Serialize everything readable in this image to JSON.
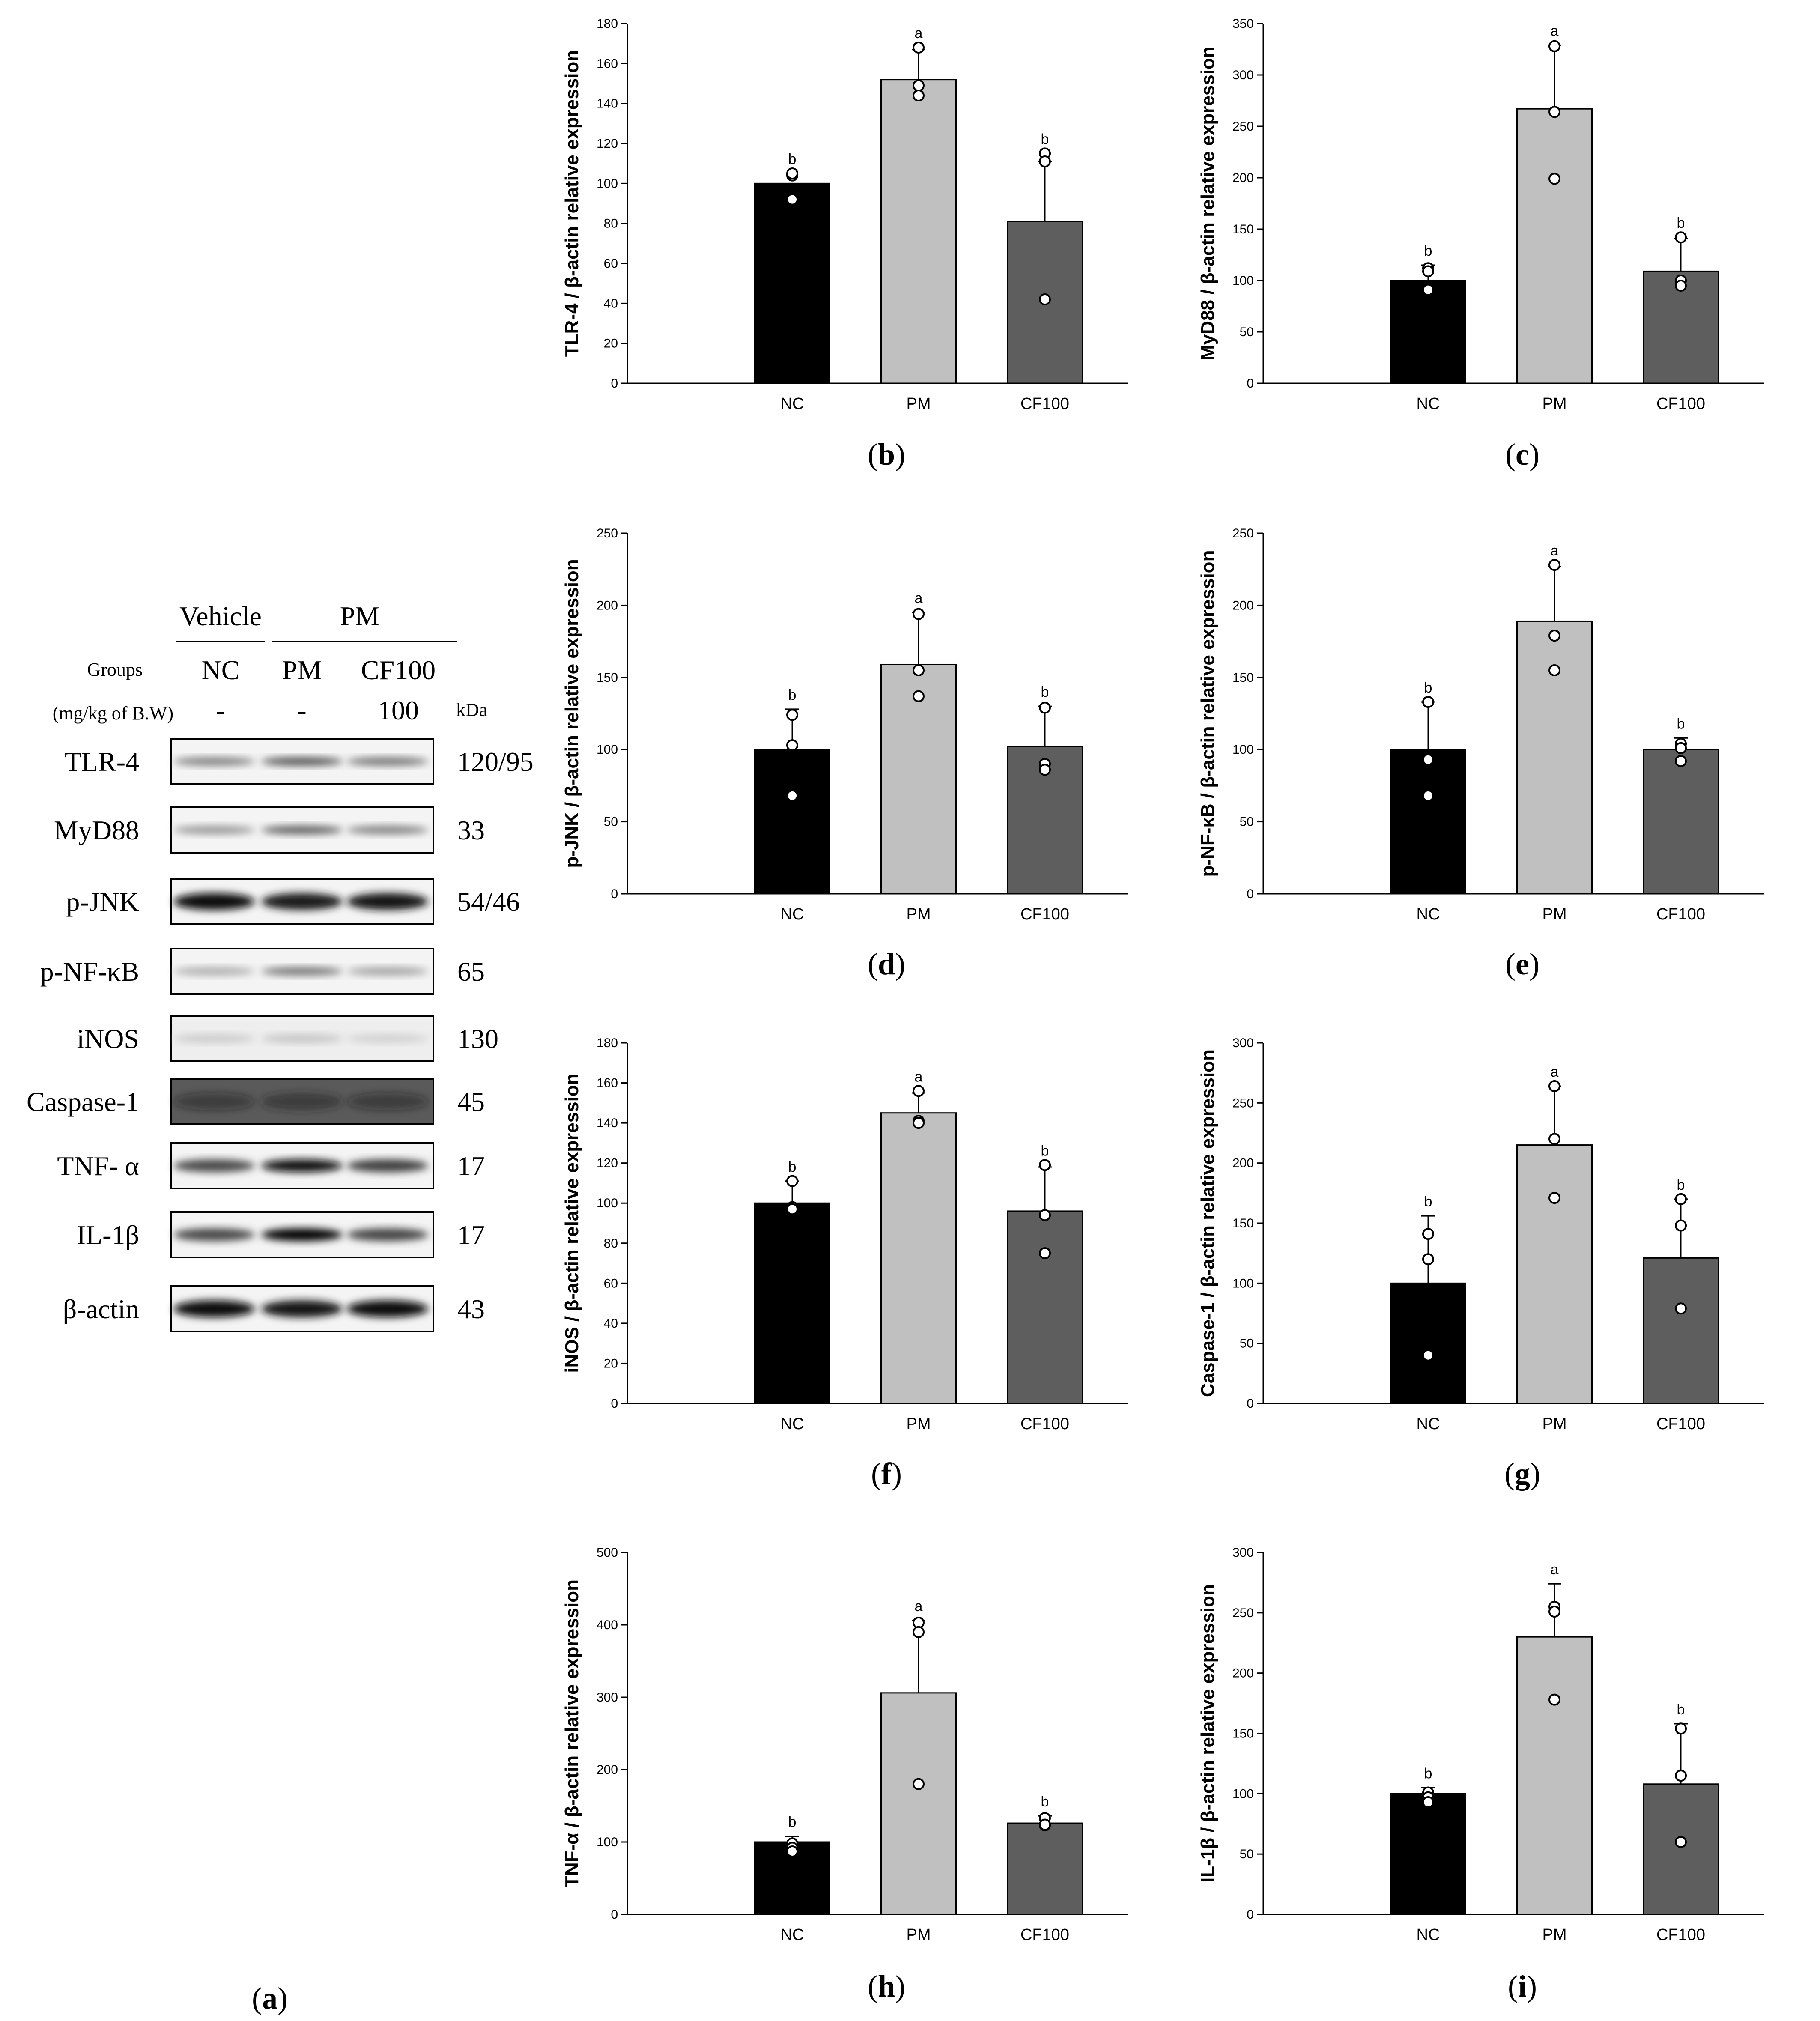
{
  "western_blot": {
    "panel_label": "a",
    "header_vehicle": "Vehicle",
    "header_pm": "PM",
    "groups_label": "Groups",
    "dose_label": "(mg/kg of B.W)",
    "lane_groups": [
      "NC",
      "PM",
      "CF100"
    ],
    "lane_doses": [
      "-",
      "-",
      "100"
    ],
    "kda_label": "kDa",
    "rows": [
      {
        "protein": "TLR-4",
        "kda": "120/95",
        "style": "faint",
        "intensity": [
          0.45,
          0.65,
          0.5
        ]
      },
      {
        "protein": "MyD88",
        "kda": "33",
        "style": "faint",
        "intensity": [
          0.35,
          0.6,
          0.45
        ]
      },
      {
        "protein": "p-JNK",
        "kda": "54/46",
        "style": "strong",
        "intensity": [
          0.95,
          0.9,
          0.92
        ]
      },
      {
        "protein": "p-NF-κB",
        "kda": "65",
        "style": "faint",
        "intensity": [
          0.25,
          0.5,
          0.3
        ]
      },
      {
        "protein": "iNOS",
        "kda": "130",
        "style": "very-faint",
        "intensity": [
          0.12,
          0.15,
          0.1
        ]
      },
      {
        "protein": "Caspase-1",
        "kda": "45",
        "style": "dark-bg",
        "intensity": [
          0.55,
          0.65,
          0.55
        ]
      },
      {
        "protein": "TNF- α",
        "kda": "17",
        "style": "medium",
        "intensity": [
          0.7,
          0.95,
          0.75
        ]
      },
      {
        "protein": "IL-1β",
        "kda": "17",
        "style": "medium",
        "intensity": [
          0.7,
          1.0,
          0.72
        ]
      },
      {
        "protein": "β-actin",
        "kda": "43",
        "style": "strong",
        "intensity": [
          0.95,
          0.92,
          0.95
        ]
      }
    ]
  },
  "colors": {
    "NC": "#000000",
    "PM": "#c0c0c0",
    "CF100": "#5e5e5e"
  },
  "chart_data": [
    {
      "type": "bar",
      "panel_label": "b",
      "ylabel": "TLR-4 / β-actin relative expression",
      "categories": [
        "NC",
        "PM",
        "CF100"
      ],
      "values": [
        100,
        152,
        81
      ],
      "errors": [
        0,
        15,
        30
      ],
      "letters": [
        "b",
        "a",
        "b"
      ],
      "ylim": [
        0,
        180
      ],
      "yticks": [
        0,
        20,
        40,
        60,
        80,
        100,
        120,
        140,
        160,
        180
      ],
      "points": [
        [
          104,
          105,
          92
        ],
        [
          168,
          149,
          144
        ],
        [
          115,
          111,
          42
        ]
      ]
    },
    {
      "type": "bar",
      "panel_label": "c",
      "ylabel": "MyD88 / β-actin relative expression",
      "categories": [
        "NC",
        "PM",
        "CF100"
      ],
      "values": [
        100,
        267,
        109
      ],
      "errors": [
        15,
        62,
        32
      ],
      "letters": [
        "b",
        "a",
        "b"
      ],
      "ylim": [
        0,
        350
      ],
      "yticks": [
        0,
        50,
        100,
        150,
        200,
        250,
        300,
        350
      ],
      "points": [
        [
          112,
          109,
          91
        ],
        [
          328,
          264,
          199
        ],
        [
          142,
          100,
          95
        ]
      ]
    },
    {
      "type": "bar",
      "panel_label": "d",
      "ylabel": "p-JNK / β-actin relative expression",
      "categories": [
        "NC",
        "PM",
        "CF100"
      ],
      "values": [
        100,
        159,
        102
      ],
      "errors": [
        28,
        36,
        28
      ],
      "letters": [
        "b",
        "a",
        "b"
      ],
      "ylim": [
        0,
        250
      ],
      "yticks": [
        0,
        50,
        100,
        150,
        200,
        250
      ],
      "points": [
        [
          124,
          103,
          68
        ],
        [
          194,
          155,
          137
        ],
        [
          129,
          90,
          86
        ]
      ]
    },
    {
      "type": "bar",
      "panel_label": "e",
      "ylabel": "p-NF-κB / β-actin relative expression",
      "categories": [
        "NC",
        "PM",
        "CF100"
      ],
      "values": [
        100,
        189,
        100
      ],
      "errors": [
        33,
        38,
        8
      ],
      "letters": [
        "b",
        "a",
        "b"
      ],
      "ylim": [
        0,
        250
      ],
      "yticks": [
        0,
        50,
        100,
        150,
        200,
        250
      ],
      "points": [
        [
          133,
          93,
          68
        ],
        [
          228,
          179,
          155
        ],
        [
          104,
          101,
          92
        ]
      ]
    },
    {
      "type": "bar",
      "panel_label": "f",
      "ylabel": "iNOS / β-actin relative expression",
      "categories": [
        "NC",
        "PM",
        "CF100"
      ],
      "values": [
        100,
        145,
        96
      ],
      "errors": [
        11,
        10,
        22
      ],
      "letters": [
        "b",
        "a",
        "b"
      ],
      "ylim": [
        0,
        180
      ],
      "yticks": [
        0,
        20,
        40,
        60,
        80,
        100,
        120,
        140,
        160,
        180
      ],
      "points": [
        [
          111,
          98,
          97
        ],
        [
          156,
          141,
          140
        ],
        [
          119,
          94,
          75
        ]
      ]
    },
    {
      "type": "bar",
      "panel_label": "g",
      "ylabel": "Caspase-1 / β-actin relative expression",
      "categories": [
        "NC",
        "PM",
        "CF100"
      ],
      "values": [
        100,
        215,
        121
      ],
      "errors": [
        56,
        49,
        49
      ],
      "letters": [
        "b",
        "a",
        "b"
      ],
      "ylim": [
        0,
        300
      ],
      "yticks": [
        0,
        50,
        100,
        150,
        200,
        250,
        300
      ],
      "points": [
        [
          141,
          120,
          40
        ],
        [
          264,
          220,
          171
        ],
        [
          170,
          148,
          79
        ]
      ]
    },
    {
      "type": "bar",
      "panel_label": "h",
      "ylabel": "TNF-α / β-actin relative expression",
      "categories": [
        "NC",
        "PM",
        "CF100"
      ],
      "values": [
        100,
        306,
        126
      ],
      "errors": [
        8,
        100,
        10
      ],
      "letters": [
        "b",
        "a",
        "b"
      ],
      "ylim": [
        0,
        500
      ],
      "yticks": [
        0,
        100,
        200,
        300,
        400,
        500
      ],
      "points": [
        [
          98,
          92,
          87
        ],
        [
          403,
          390,
          180
        ],
        [
          133,
          123,
          124
        ]
      ]
    },
    {
      "type": "bar",
      "panel_label": "i",
      "ylabel": "IL-1β / β-actin relative expression",
      "categories": [
        "NC",
        "PM",
        "CF100"
      ],
      "values": [
        100,
        230,
        108
      ],
      "errors": [
        5,
        44,
        50
      ],
      "letters": [
        "b",
        "a",
        "b"
      ],
      "ylim": [
        0,
        300
      ],
      "yticks": [
        0,
        50,
        100,
        150,
        200,
        250,
        300
      ],
      "points": [
        [
          101,
          97,
          93
        ],
        [
          255,
          251,
          178
        ],
        [
          154,
          115,
          60
        ]
      ]
    }
  ]
}
